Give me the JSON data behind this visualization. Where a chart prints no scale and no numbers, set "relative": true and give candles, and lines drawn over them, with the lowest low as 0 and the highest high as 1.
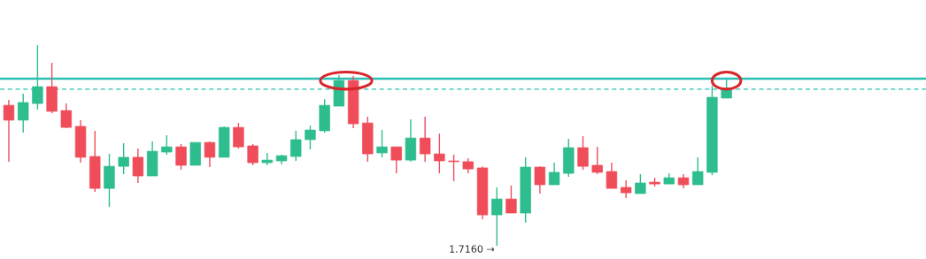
{
  "chart_data": {
    "type": "candlestick",
    "relative": true,
    "categories": [
      null,
      null,
      null,
      null,
      null,
      null,
      null,
      null,
      null,
      null,
      null,
      null,
      null,
      null,
      null,
      null,
      null,
      null,
      null,
      null,
      null,
      null,
      null,
      null,
      null,
      null,
      null,
      null,
      null,
      null,
      null,
      null,
      null,
      null,
      null,
      null,
      null,
      null,
      null,
      null,
      null,
      null,
      null,
      null,
      null,
      null,
      null,
      null,
      null,
      null,
      null
    ],
    "ohlc": [
      [
        0.7,
        0.727,
        0.419,
        0.626
      ],
      [
        0.626,
        0.758,
        0.564,
        0.714
      ],
      [
        0.709,
        1.0,
        0.678,
        0.793
      ],
      [
        0.793,
        0.912,
        0.661,
        0.67
      ],
      [
        0.674,
        0.709,
        0.586,
        0.59
      ],
      [
        0.595,
        0.626,
        0.414,
        0.441
      ],
      [
        0.445,
        0.573,
        0.269,
        0.286
      ],
      [
        0.286,
        0.458,
        0.194,
        0.396
      ],
      [
        0.396,
        0.511,
        0.357,
        0.441
      ],
      [
        0.441,
        0.485,
        0.313,
        0.348
      ],
      [
        0.348,
        0.52,
        0.348,
        0.471
      ],
      [
        0.467,
        0.551,
        0.454,
        0.493
      ],
      [
        0.493,
        0.507,
        0.379,
        0.401
      ],
      [
        0.401,
        0.515,
        0.401,
        0.515
      ],
      [
        0.515,
        0.52,
        0.392,
        0.441
      ],
      [
        0.441,
        0.595,
        0.441,
        0.59
      ],
      [
        0.59,
        0.612,
        0.485,
        0.493
      ],
      [
        0.498,
        0.507,
        0.401,
        0.414
      ],
      [
        0.414,
        0.463,
        0.401,
        0.427
      ],
      [
        0.423,
        0.454,
        0.405,
        0.449
      ],
      [
        0.445,
        0.573,
        0.423,
        0.529
      ],
      [
        0.529,
        0.599,
        0.48,
        0.577
      ],
      [
        0.573,
        0.731,
        0.564,
        0.7
      ],
      [
        0.696,
        0.85,
        0.696,
        0.824
      ],
      [
        0.824,
        0.846,
        0.586,
        0.608
      ],
      [
        0.612,
        0.643,
        0.419,
        0.458
      ],
      [
        0.463,
        0.577,
        0.441,
        0.493
      ],
      [
        0.493,
        0.493,
        0.361,
        0.427
      ],
      [
        0.427,
        0.63,
        0.419,
        0.537
      ],
      [
        0.537,
        0.643,
        0.419,
        0.458
      ],
      [
        0.458,
        0.559,
        0.361,
        0.423
      ],
      [
        0.423,
        0.454,
        0.322,
        0.419
      ],
      [
        0.419,
        0.436,
        0.361,
        0.383
      ],
      [
        0.388,
        0.396,
        0.132,
        0.154
      ],
      [
        0.154,
        0.291,
        0,
        0.233
      ],
      [
        0.233,
        0.3,
        0.163,
        0.163
      ],
      [
        0.163,
        0.441,
        0.115,
        0.392
      ],
      [
        0.392,
        0.396,
        0.26,
        0.304
      ],
      [
        0.304,
        0.414,
        0.304,
        0.366
      ],
      [
        0.361,
        0.533,
        0.344,
        0.489
      ],
      [
        0.489,
        0.546,
        0.379,
        0.396
      ],
      [
        0.401,
        0.493,
        0.357,
        0.366
      ],
      [
        0.37,
        0.414,
        0.286,
        0.286
      ],
      [
        0.291,
        0.326,
        0.238,
        0.264
      ],
      [
        0.26,
        0.357,
        0.26,
        0.313
      ],
      [
        0.317,
        0.339,
        0.295,
        0.308
      ],
      [
        0.308,
        0.361,
        0.308,
        0.339
      ],
      [
        0.339,
        0.357,
        0.286,
        0.304
      ],
      [
        0.304,
        0.441,
        0.304,
        0.37
      ],
      [
        0.366,
        0.797,
        0.352,
        0.74
      ],
      [
        0.736,
        0.828,
        0.736,
        0.78
      ]
    ],
    "colors": [
      "#ef4d5a",
      "#2ebd8f",
      "#2ebd8f",
      "#ef4d5a",
      "#ef4d5a",
      "#ef4d5a",
      "#ef4d5a",
      "#2ebd8f",
      "#2ebd8f",
      "#ef4d5a",
      "#2ebd8f",
      "#2ebd8f",
      "#ef4d5a",
      "#2ebd8f",
      "#ef4d5a",
      "#2ebd8f",
      "#ef4d5a",
      "#ef4d5a",
      "#2ebd8f",
      "#2ebd8f",
      "#2ebd8f",
      "#2ebd8f",
      "#2ebd8f",
      "#2ebd8f",
      "#ef4d5a",
      "#ef4d5a",
      "#2ebd8f",
      "#ef4d5a",
      "#2ebd8f",
      "#ef4d5a",
      "#ef4d5a",
      "#ef4d5a",
      "#ef4d5a",
      "#ef4d5a",
      "#2ebd8f",
      "#ef4d5a",
      "#2ebd8f",
      "#ef4d5a",
      "#2ebd8f",
      "#2ebd8f",
      "#ef4d5a",
      "#ef4d5a",
      "#ef4d5a",
      "#ef4d5a",
      "#2ebd8f",
      "#ef4d5a",
      "#2ebd8f",
      "#ef4d5a",
      "#2ebd8f",
      "#2ebd8f",
      "#2ebd8f"
    ],
    "ref_lines": [
      {
        "axis": "y",
        "value": 0.833,
        "color": "#2bbfb5",
        "line_style": "solid"
      },
      {
        "axis": "y",
        "value": 0.78,
        "color": "#2bbfb5",
        "line_style": "dashed"
      }
    ],
    "annotations": [
      "1.7160 →"
    ]
  }
}
